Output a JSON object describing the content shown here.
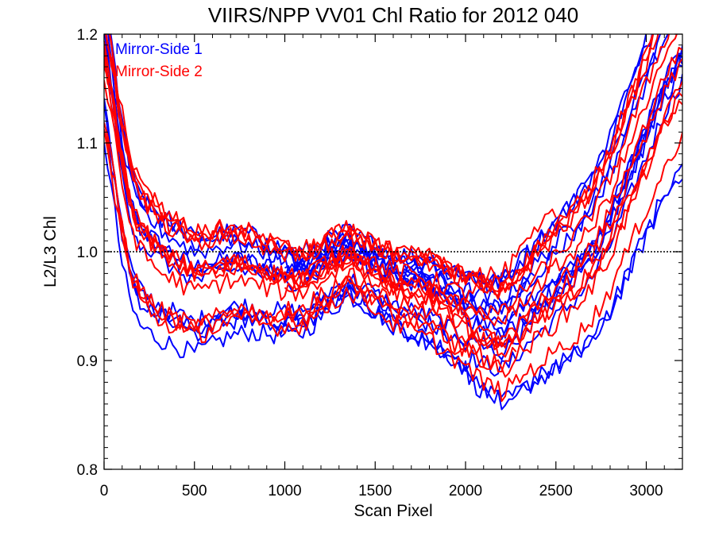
{
  "chart_data": {
    "type": "line",
    "title": "VIIRS/NPP VV01 Chl Ratio for 2012 040",
    "xlabel": "Scan Pixel",
    "ylabel": "L2/L3 Chl",
    "xlim": [
      0,
      3200
    ],
    "ylim": [
      0.8,
      1.2
    ],
    "x_ticks": [
      0,
      500,
      1000,
      1500,
      2000,
      2500,
      3000
    ],
    "y_ticks": [
      0.8,
      0.9,
      1.0,
      1.1,
      1.2
    ],
    "x_tick_labels": [
      "0",
      "500",
      "1000",
      "1500",
      "2000",
      "2500",
      "3000"
    ],
    "y_tick_labels": [
      "0.8",
      "0.9",
      "1.0",
      "1.1",
      "1.2"
    ],
    "reference_line": {
      "y": 1.0,
      "style": "dotted"
    },
    "legend": {
      "placement": "top-left",
      "entries": [
        {
          "name": "Mirror-Side 1",
          "color": "#0000ff"
        },
        {
          "name": "Mirror-Side 2",
          "color": "#ff0000"
        }
      ]
    },
    "series": [
      {
        "name": "Mirror-Side 1",
        "color": "#0000ff",
        "x": [
          0,
          50,
          100,
          150,
          200,
          300,
          400,
          500,
          600,
          700,
          800,
          900,
          1000,
          1100,
          1200,
          1300,
          1350,
          1400,
          1500,
          1600,
          1700,
          1800,
          1900,
          2000,
          2100,
          2200,
          2250,
          2300,
          2400,
          2500,
          2600,
          2700,
          2800,
          2900,
          3000,
          3100,
          3200
        ],
        "values": [
          1.18,
          1.12,
          1.06,
          1.02,
          1.0,
          0.985,
          0.975,
          0.965,
          0.97,
          0.975,
          0.975,
          0.97,
          0.965,
          0.965,
          0.975,
          0.985,
          0.99,
          0.985,
          0.975,
          0.965,
          0.96,
          0.955,
          0.945,
          0.935,
          0.925,
          0.92,
          0.925,
          0.935,
          0.95,
          0.965,
          0.98,
          1.0,
          1.03,
          1.07,
          1.11,
          1.15,
          1.18
        ]
      },
      {
        "name": "Mirror-Side 2",
        "color": "#ff0000",
        "x": [
          0,
          50,
          100,
          150,
          200,
          300,
          400,
          500,
          600,
          700,
          800,
          900,
          1000,
          1100,
          1200,
          1300,
          1350,
          1400,
          1500,
          1600,
          1700,
          1800,
          1900,
          2000,
          2100,
          2200,
          2250,
          2300,
          2400,
          2500,
          2600,
          2700,
          2800,
          2900,
          3000,
          3100,
          3200
        ],
        "values": [
          1.17,
          1.12,
          1.07,
          1.03,
          1.01,
          0.99,
          0.98,
          0.97,
          0.975,
          0.98,
          0.978,
          0.972,
          0.968,
          0.968,
          0.978,
          0.988,
          0.993,
          0.988,
          0.978,
          0.968,
          0.963,
          0.958,
          0.948,
          0.938,
          0.928,
          0.922,
          0.928,
          0.938,
          0.953,
          0.968,
          0.983,
          1.003,
          1.033,
          1.073,
          1.113,
          1.153,
          1.183
        ]
      }
    ]
  }
}
